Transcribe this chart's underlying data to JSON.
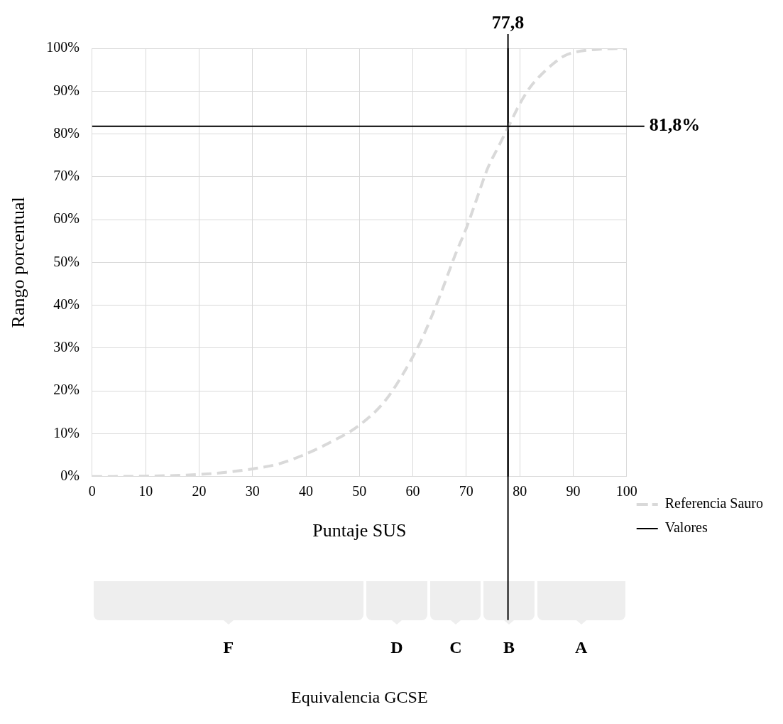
{
  "chart_data": {
    "type": "line",
    "xlabel": "Puntaje SUS",
    "ylabel": "Rango porcentual",
    "xlim": [
      0,
      100
    ],
    "xticks": [
      0,
      10,
      20,
      30,
      40,
      50,
      60,
      70,
      80,
      90,
      100
    ],
    "ylim": [
      0,
      100
    ],
    "yticks": [
      {
        "value": 0,
        "label": "0%"
      },
      {
        "value": 10,
        "label": "10%"
      },
      {
        "value": 20,
        "label": "20%"
      },
      {
        "value": 30,
        "label": "30%"
      },
      {
        "value": 40,
        "label": "40%"
      },
      {
        "value": 50,
        "label": "50%"
      },
      {
        "value": 60,
        "label": "60%"
      },
      {
        "value": 70,
        "label": "70%"
      },
      {
        "value": 80,
        "label": "80%"
      },
      {
        "value": 90,
        "label": "90%"
      },
      {
        "value": 100,
        "label": "100%"
      }
    ],
    "grid": true,
    "legend": "right",
    "marker": "none",
    "series": [
      {
        "name": "Referencia Sauro",
        "color": "#d9d9d9",
        "line_style": "dashed",
        "x": [
          0,
          10,
          20,
          25,
          30,
          35,
          40,
          45,
          50,
          55,
          60,
          62,
          65,
          68,
          70,
          72,
          74,
          76,
          78,
          80,
          82,
          85,
          88,
          90,
          95,
          100
        ],
        "values": [
          0,
          0.1,
          0.5,
          1,
          1.8,
          3,
          5.3,
          8.3,
          12,
          18,
          28,
          33,
          42,
          52,
          58,
          65,
          72,
          77,
          82,
          87,
          91,
          95,
          98,
          99,
          99.8,
          100
        ]
      },
      {
        "name": "Valores",
        "color": "#000000",
        "line_style": "solid",
        "x": [
          77.8,
          77.8
        ],
        "values": [
          0,
          100
        ]
      }
    ],
    "ref_lines": [
      {
        "axis": "x",
        "value": 77.8,
        "label": "77,8",
        "color": "#000000"
      },
      {
        "axis": "y",
        "value": 81.8,
        "label": "81,8%",
        "color": "#000000"
      }
    ],
    "annotations": [
      "F",
      "D",
      "C",
      "B",
      "A",
      "Equivalencia GCSE"
    ]
  }
}
